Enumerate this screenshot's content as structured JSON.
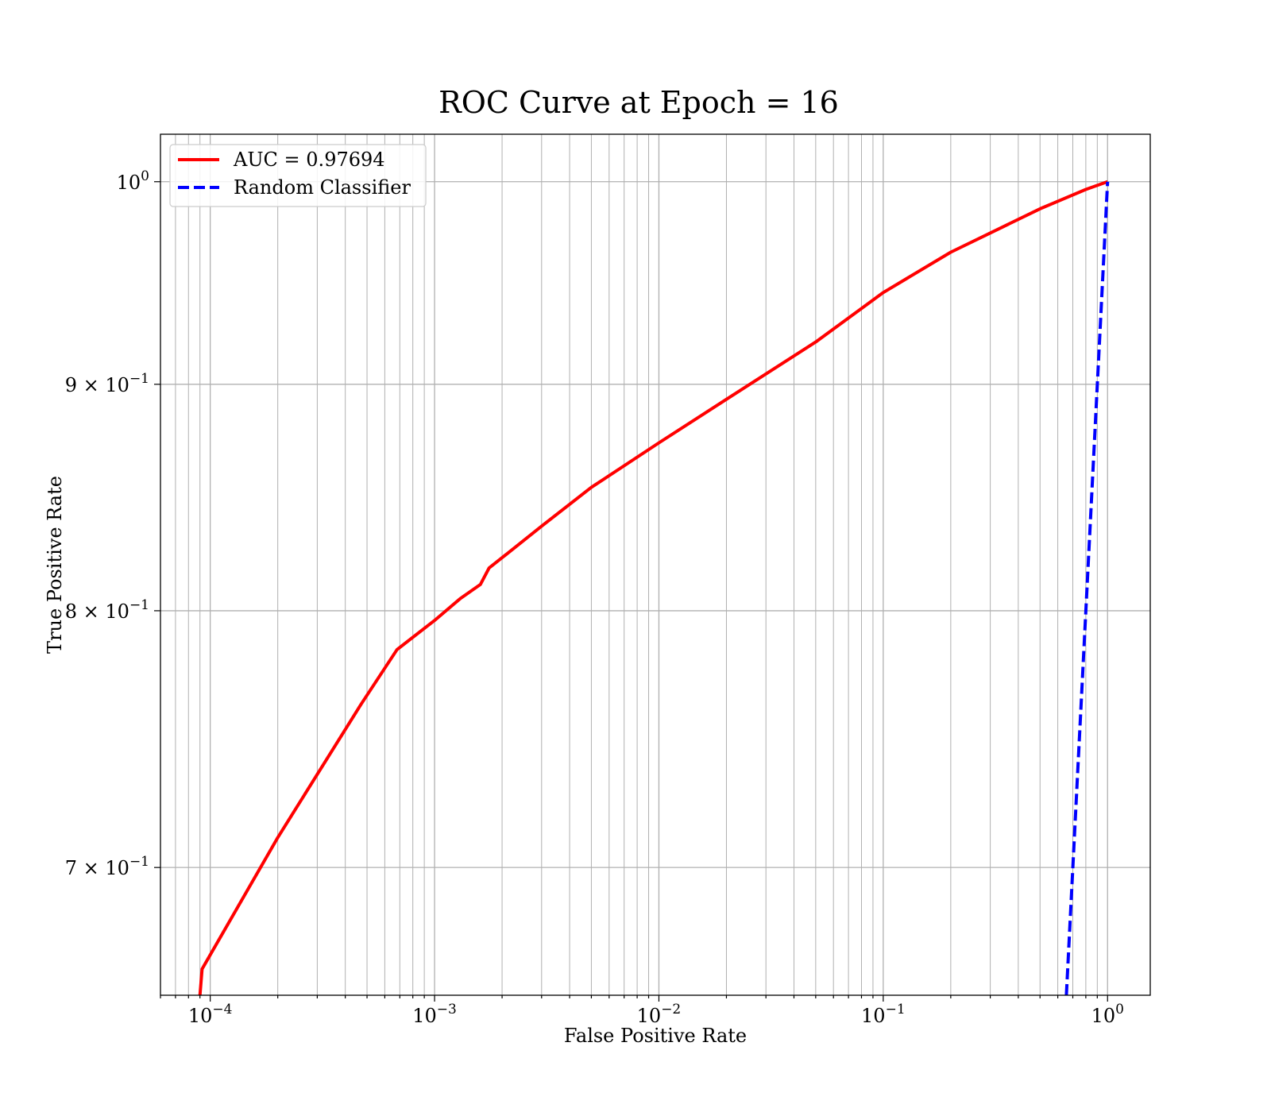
{
  "chart_data": {
    "type": "line",
    "title": "ROC Curve at Epoch = 16",
    "xlabel": "False Positive Rate",
    "ylabel": "True Positive Rate",
    "xscale": "log",
    "yscale": "log",
    "xlim": [
      6e-05,
      1.55
    ],
    "ylim": [
      0.655,
      1.025
    ],
    "grid": true,
    "legend_position": "top-left",
    "x_ticks": [
      {
        "value": 0.0001,
        "base": "10",
        "exp": "−4"
      },
      {
        "value": 0.001,
        "base": "10",
        "exp": "−3"
      },
      {
        "value": 0.01,
        "base": "10",
        "exp": "−2"
      },
      {
        "value": 0.1,
        "base": "10",
        "exp": "−1"
      },
      {
        "value": 1,
        "base": "10",
        "exp": "0"
      }
    ],
    "y_ticks": [
      {
        "value": 0.7,
        "base": "7 × 10",
        "exp": "−1"
      },
      {
        "value": 0.8,
        "base": "8 × 10",
        "exp": "−1"
      },
      {
        "value": 0.9,
        "base": "9 × 10",
        "exp": "−1"
      },
      {
        "value": 1.0,
        "base": "10",
        "exp": "0"
      }
    ],
    "series": [
      {
        "name": "AUC = 0.97694",
        "color": "#ff0000",
        "style": "solid",
        "x": [
          9e-05,
          9.2e-05,
          0.0002,
          0.00047,
          0.00068,
          0.001,
          0.0013,
          0.0016,
          0.00175,
          0.0021,
          0.003,
          0.005,
          0.01,
          0.02,
          0.05,
          0.1,
          0.2,
          0.5,
          0.8,
          1.0
        ],
        "y": [
          0.655,
          0.664,
          0.711,
          0.762,
          0.784,
          0.796,
          0.805,
          0.811,
          0.818,
          0.824,
          0.836,
          0.853,
          0.873,
          0.893,
          0.92,
          0.944,
          0.964,
          0.986,
          0.996,
          1.0
        ]
      },
      {
        "name": "Random Classifier",
        "color": "#0000ff",
        "style": "dashed",
        "x": [
          0.655,
          1.0
        ],
        "y": [
          0.655,
          1.0
        ]
      }
    ]
  }
}
